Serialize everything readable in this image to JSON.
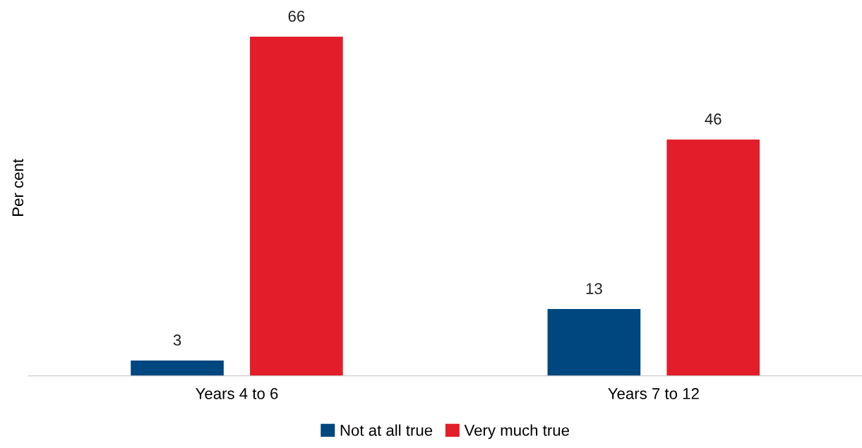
{
  "chart_data": {
    "type": "bar",
    "ylabel": "Per cent",
    "categories": [
      "Years 4 to 6",
      "Years 7 to 12"
    ],
    "series": [
      {
        "name": "Not at all true",
        "color": "#00467f",
        "values": [
          3,
          13
        ]
      },
      {
        "name": "Very much true",
        "color": "#e31d2a",
        "values": [
          66,
          46
        ]
      }
    ],
    "data_labels": true,
    "legend": "bottom",
    "grid": false,
    "tick_labels": "x"
  }
}
